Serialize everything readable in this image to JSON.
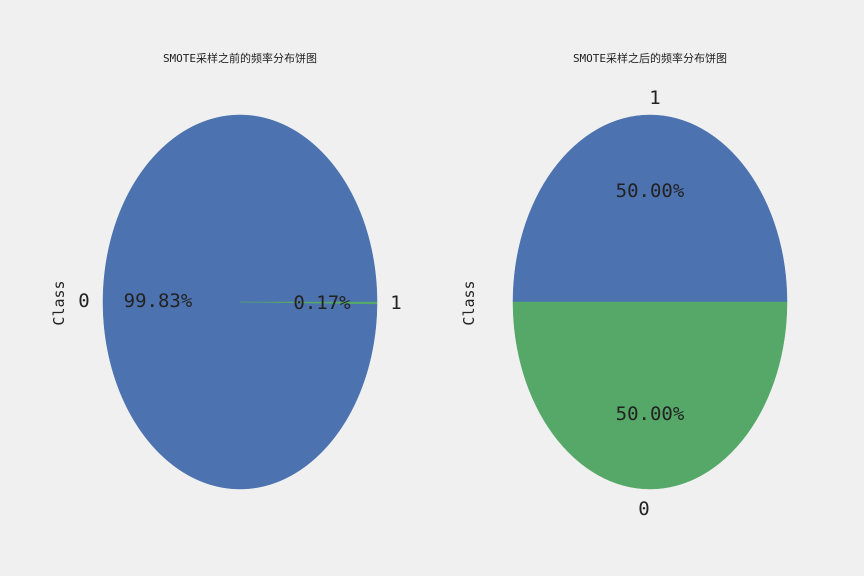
{
  "chart_data": [
    {
      "type": "pie",
      "title": "SMOTE采样之前的频率分布饼图",
      "ylabel": "Class",
      "slices": [
        {
          "label": "0",
          "value": 99.83,
          "pct_label": "99.83%",
          "color": "#4c72b0"
        },
        {
          "label": "1",
          "value": 0.17,
          "pct_label": "0.17%",
          "color": "#55a868"
        }
      ]
    },
    {
      "type": "pie",
      "title": "SMOTE采样之后的频率分布饼图",
      "ylabel": "Class",
      "slices": [
        {
          "label": "1",
          "value": 50.0,
          "pct_label": "50.00%",
          "color": "#4c72b0"
        },
        {
          "label": "0",
          "value": 50.0,
          "pct_label": "50.00%",
          "color": "#55a868"
        }
      ]
    }
  ]
}
